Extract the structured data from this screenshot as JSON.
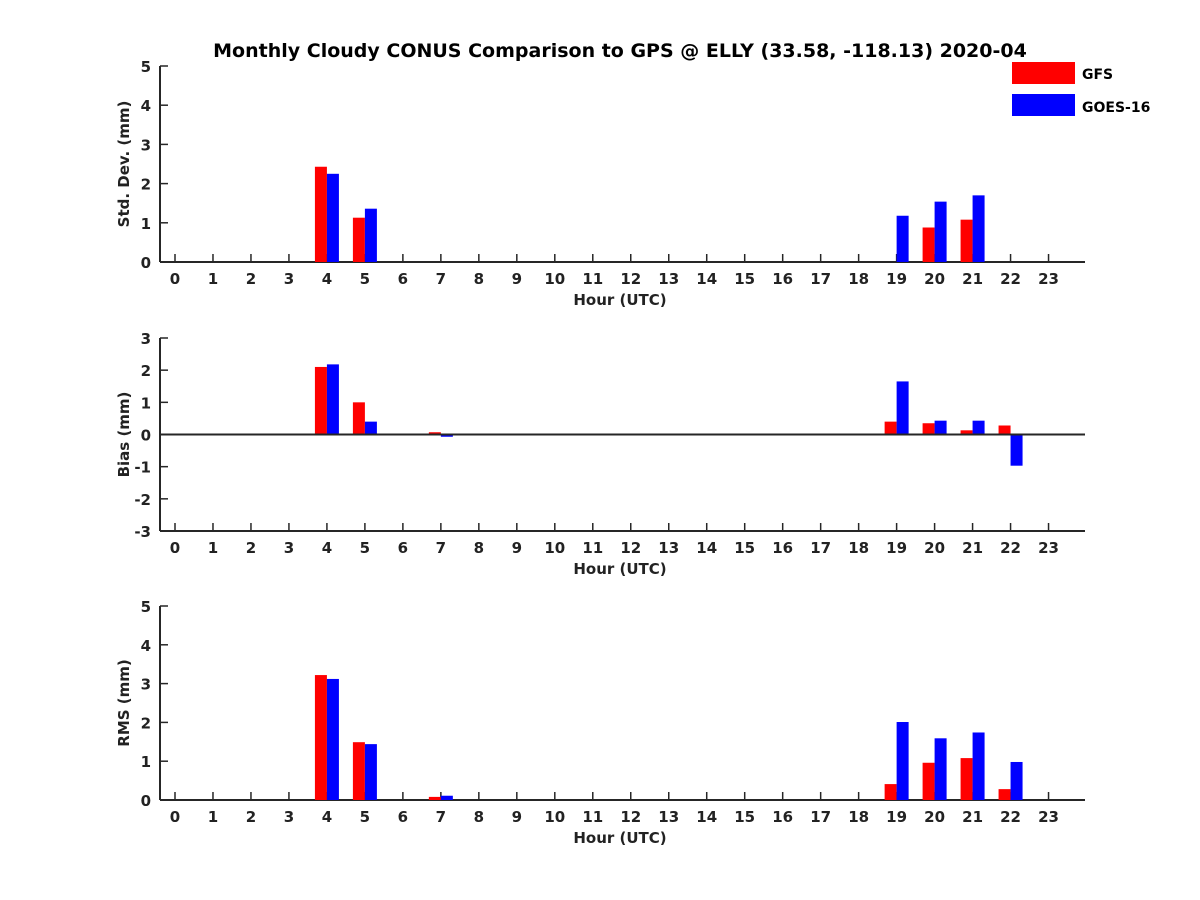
{
  "chart_data": [
    {
      "type": "bar",
      "title": "Monthly Cloudy CONUS Comparison to GPS @ ELLY (33.58, -118.13) 2020-04",
      "xlabel": "Hour (UTC)",
      "ylabel": "Std. Dev. (mm)",
      "ylim": [
        0,
        5
      ],
      "yticks": [
        0,
        1,
        2,
        3,
        4,
        5
      ],
      "categories": [
        "0",
        "1",
        "2",
        "3",
        "4",
        "5",
        "6",
        "7",
        "8",
        "9",
        "10",
        "11",
        "12",
        "13",
        "14",
        "15",
        "16",
        "17",
        "18",
        "19",
        "20",
        "21",
        "22",
        "23"
      ],
      "series": [
        {
          "name": "GFS",
          "values": [
            null,
            null,
            null,
            null,
            2.43,
            1.13,
            null,
            null,
            null,
            null,
            null,
            null,
            null,
            null,
            null,
            null,
            null,
            null,
            null,
            null,
            0.88,
            1.08,
            null,
            null
          ]
        },
        {
          "name": "GOES-16",
          "values": [
            null,
            null,
            null,
            null,
            2.25,
            1.36,
            null,
            null,
            null,
            null,
            null,
            null,
            null,
            null,
            null,
            null,
            null,
            null,
            null,
            1.18,
            1.54,
            1.7,
            null,
            null
          ]
        }
      ],
      "legend": "top-right",
      "grid": false
    },
    {
      "type": "bar",
      "xlabel": "Hour (UTC)",
      "ylabel": "Bias (mm)",
      "ylim": [
        -3,
        3
      ],
      "yticks": [
        -3,
        -2,
        -1,
        0,
        1,
        2,
        3
      ],
      "categories": [
        "0",
        "1",
        "2",
        "3",
        "4",
        "5",
        "6",
        "7",
        "8",
        "9",
        "10",
        "11",
        "12",
        "13",
        "14",
        "15",
        "16",
        "17",
        "18",
        "19",
        "20",
        "21",
        "22",
        "23"
      ],
      "series": [
        {
          "name": "GFS",
          "values": [
            null,
            null,
            null,
            null,
            2.1,
            1.0,
            null,
            0.07,
            null,
            null,
            null,
            null,
            null,
            null,
            null,
            null,
            null,
            null,
            null,
            0.4,
            0.35,
            0.13,
            0.28,
            null
          ]
        },
        {
          "name": "GOES-16",
          "values": [
            null,
            null,
            null,
            null,
            2.18,
            0.4,
            null,
            -0.07,
            null,
            null,
            null,
            null,
            null,
            null,
            null,
            null,
            null,
            null,
            null,
            1.65,
            0.43,
            0.43,
            -0.97,
            null
          ]
        }
      ],
      "grid": false
    },
    {
      "type": "bar",
      "xlabel": "Hour (UTC)",
      "ylabel": "RMS (mm)",
      "ylim": [
        0,
        5
      ],
      "yticks": [
        0,
        1,
        2,
        3,
        4,
        5
      ],
      "categories": [
        "0",
        "1",
        "2",
        "3",
        "4",
        "5",
        "6",
        "7",
        "8",
        "9",
        "10",
        "11",
        "12",
        "13",
        "14",
        "15",
        "16",
        "17",
        "18",
        "19",
        "20",
        "21",
        "22",
        "23"
      ],
      "series": [
        {
          "name": "GFS",
          "values": [
            null,
            null,
            null,
            null,
            3.22,
            1.49,
            null,
            0.08,
            null,
            null,
            null,
            null,
            null,
            null,
            null,
            null,
            null,
            null,
            null,
            0.41,
            0.96,
            1.08,
            0.28,
            null
          ]
        },
        {
          "name": "GOES-16",
          "values": [
            null,
            null,
            null,
            null,
            3.12,
            1.44,
            null,
            0.11,
            null,
            null,
            null,
            null,
            null,
            null,
            null,
            null,
            null,
            null,
            null,
            2.01,
            1.59,
            1.74,
            0.98,
            null
          ]
        }
      ],
      "grid": false
    }
  ],
  "colors": {
    "GFS": "#ff0000",
    "GOES-16": "#0000ff",
    "axis": "#262626"
  },
  "legend": {
    "items": [
      {
        "label": "GFS",
        "color": "#ff0000"
      },
      {
        "label": "GOES-16",
        "color": "#0000ff"
      }
    ]
  }
}
